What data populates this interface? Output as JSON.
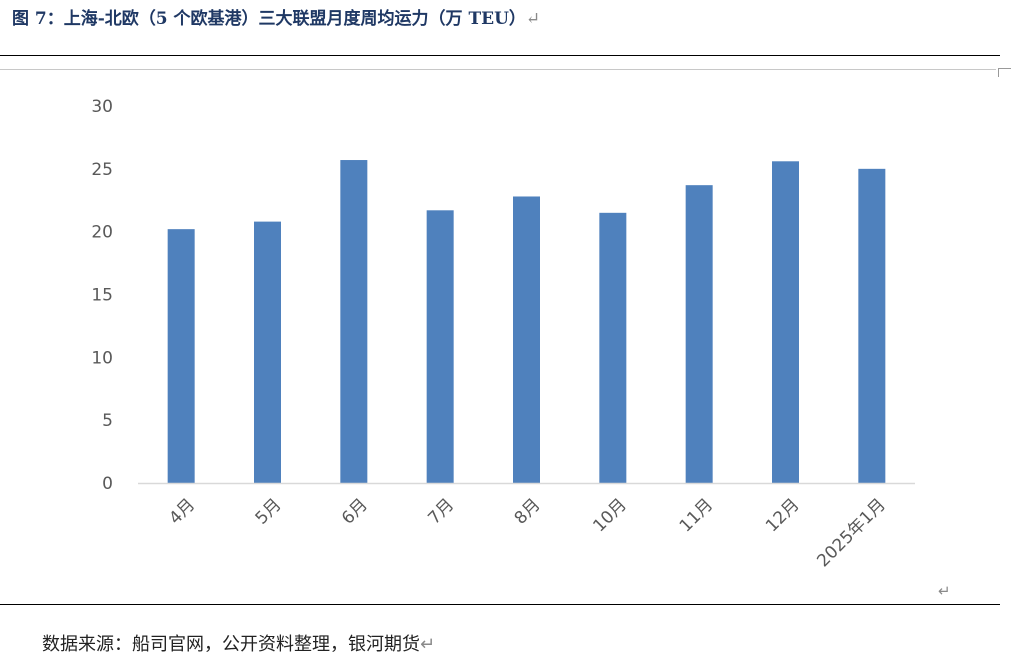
{
  "title": "图 7：上海-北欧（5 个欧基港）三大联盟月度周均运力（万 TEU）",
  "paragraph_mark": "↵",
  "source": "数据来源：船司官网，公开资料整理，银河期货",
  "chart_data": {
    "type": "bar",
    "categories": [
      "4月",
      "5月",
      "6月",
      "7月",
      "8月",
      "10月",
      "11月",
      "12月",
      "2025年1月"
    ],
    "values": [
      20.2,
      20.8,
      25.7,
      21.7,
      22.8,
      21.5,
      23.7,
      25.6,
      25.0
    ],
    "yticks": [
      0,
      5,
      10,
      15,
      20,
      25,
      30
    ],
    "ylim": [
      0,
      30
    ],
    "grid": false,
    "legend": "none",
    "bar_color": "#4f81bd",
    "axis_color": "#d9d9d9"
  }
}
